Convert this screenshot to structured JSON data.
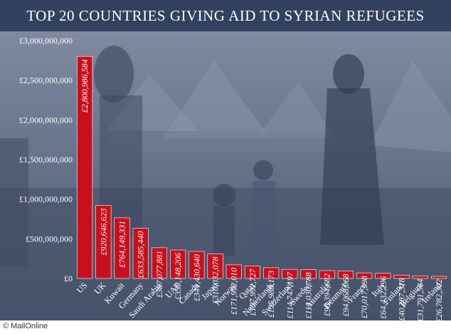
{
  "chart_data": {
    "type": "bar",
    "title": "TOP 20 COUNTRIES GIVING AID TO SYRIAN REFUGEES",
    "xlabel": "",
    "ylabel": "",
    "ylim": [
      0,
      3000000000
    ],
    "yticks": [
      0,
      500000000,
      1000000000,
      1500000000,
      2000000000,
      2500000000,
      3000000000
    ],
    "ytick_labels": [
      "£0",
      "£500,000,000",
      "£1,000,000,000",
      "£1,500,000,000",
      "£2,000,000,000",
      "£2,500,000,000",
      "£3,000,000,000"
    ],
    "categories": [
      "US",
      "UK",
      "Kuwait",
      "Germany",
      "Saudi Arabia",
      "UAE",
      "Canada",
      "Japan",
      "Norway",
      "Qatar",
      "Netherlands",
      "Switzerland",
      "Sweden",
      "Australia",
      "Denmark",
      "France",
      "Italy",
      "Finland",
      "Belgium",
      "Ireland"
    ],
    "values": [
      2800986584,
      920646623,
      764149331,
      633585440,
      387077881,
      359148206,
      341430640,
      310032078,
      171992010,
      157992727,
      135988173,
      114747197,
      113030788,
      98394682,
      94068068,
      70017598,
      64432296,
      40287318,
      31791564,
      26782302
    ],
    "value_labels": [
      "£2,800,986,584",
      "£920,646,623",
      "£764,149,331",
      "£633,585,440",
      "£387,077,881",
      "£359,148,206",
      "£341,430,640",
      "£310,032,078",
      "£171,992,010",
      "£157,992,727",
      "£135,988,173",
      "£114,747,197",
      "£113,030,788",
      "£98,394,682",
      "£94,068,068",
      "£70,017,598",
      "£64,432,296",
      "£40,287,318",
      "£31,791,564",
      "£26,782,302"
    ],
    "bar_color": "#c8101c",
    "grid": false,
    "legend": "none"
  },
  "colors": {
    "title_bg": "#32415f",
    "background": "#5f6c84",
    "bar": "#c8101c",
    "text": "#ffffff"
  },
  "footer": {
    "credit": "© MailOnline"
  }
}
